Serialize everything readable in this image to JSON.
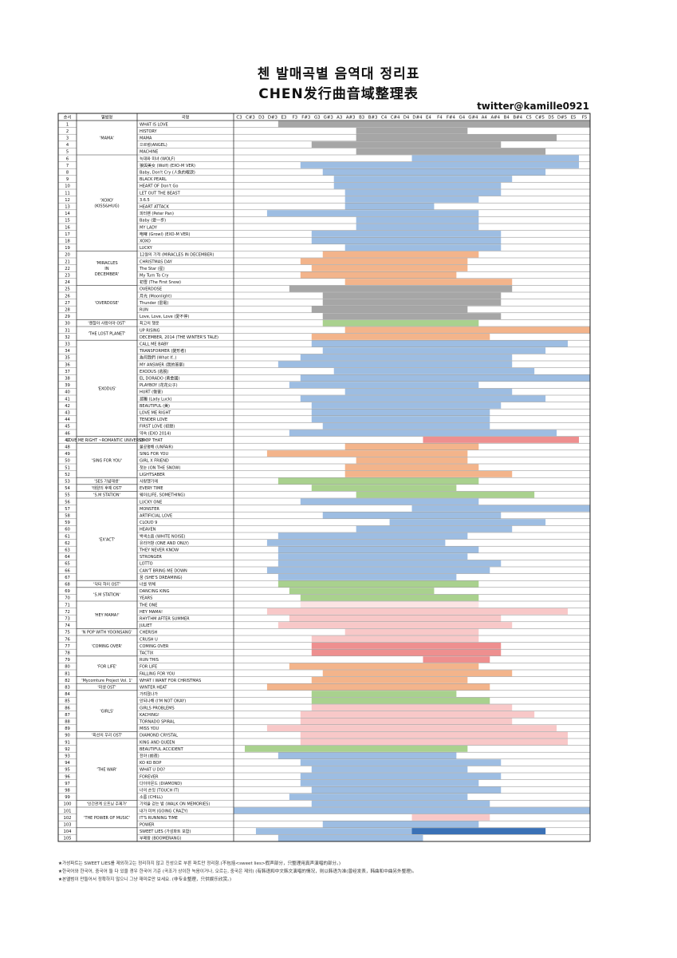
{
  "title_ko": "첸 발매곡별 음역대 정리표",
  "title_zh": "CHEN发行曲音域整理表",
  "credit": "twitter@kamille0921",
  "footnotes": [
    "★가성파트는 SWEET LIES를 제외하고는 정리하지 않고 진성으로 부른 파트만 정리함.(不包括<sweet lies>假声部分，只整理用真声演唱的部分。)",
    "★한국어와 한국어, 중국어 둘 다 있을 경우 한국어 기준 (곡조가 상이한 녹음이거나, 오르는, 중국은 제외) (有韩语和中文韩文演唱的情况，则以韩语为准(曾经发表，韩曲和中曲另外整理)。",
    "★본앨범이 만들어서 정확하지 않으니 그냥 재미로만 보세요. (非专业整理，只供娱乐欣赏。)"
  ],
  "chart_data": {
    "type": "range-bar",
    "header": {
      "num": "순서",
      "album": "앨범명",
      "song": "곡명"
    },
    "notes": [
      "C3",
      "C#3",
      "D3",
      "D#3",
      "E3",
      "F3",
      "F#3",
      "G3",
      "G#3",
      "A3",
      "A#3",
      "B3",
      "B#3",
      "C4",
      "C#4",
      "D4",
      "D#4",
      "E4",
      "F4",
      "F#4",
      "G4",
      "G#4",
      "A4",
      "A#4",
      "B4",
      "B#4",
      "C5",
      "C#5",
      "D5",
      "D#5",
      "E5",
      "F5"
    ],
    "colors": {
      "gray": "#a6a6a6",
      "blue": "#9dbde2",
      "orange": "#f3b48b",
      "green": "#a9d18e",
      "pink": "#f8c8c8",
      "red": "#ee8f8f",
      "dblue": "#3a71b6",
      "pblue": "#cfe0f1",
      "pgreen": "#d6ebc9",
      "porange": "#fbdcc7",
      "ppink": "#fce4e4"
    },
    "albums": [
      {
        "name": "'MAMA'",
        "start": 0,
        "end": 4
      },
      {
        "name": "'XOXO'\n(KISS&HUG)",
        "start": 5,
        "end": 18
      },
      {
        "name": "'MIRACLES\nIN\nDECEMBER'",
        "start": 19,
        "end": 23
      },
      {
        "name": "'OVERDOSE'",
        "start": 24,
        "end": 28
      },
      {
        "name": "'괜찮아 사랑이야 OST'",
        "start": 29,
        "end": 29
      },
      {
        "name": "'THE LOST PLANET'",
        "start": 30,
        "end": 31
      },
      {
        "name": "'EXODUS'",
        "start": 32,
        "end": 45
      },
      {
        "name": "'LOVE ME RIGHT ~ROMANTIC UNIVERSE~'",
        "start": 46,
        "end": 46
      },
      {
        "name": "'SING FOR YOU'",
        "start": 47,
        "end": 51
      },
      {
        "name": "'SES 기념재생'",
        "start": 52,
        "end": 52
      },
      {
        "name": "'태양의 후예 OST'",
        "start": 53,
        "end": 53
      },
      {
        "name": "'S.M STATION'",
        "start": 54,
        "end": 54
      },
      {
        "name": "'EX'ACT'",
        "start": 55,
        "end": 66
      },
      {
        "name": "'닥터 하이 OST'",
        "start": 67,
        "end": 67
      },
      {
        "name": "'S.M STATION'",
        "start": 68,
        "end": 69
      },
      {
        "name": "'HEY MAMA!'",
        "start": 70,
        "end": 73
      },
      {
        "name": "'N POP WITH YOOINSANG'",
        "start": 74,
        "end": 74
      },
      {
        "name": "'COMING OVER'",
        "start": 75,
        "end": 77
      },
      {
        "name": "'FOR LIFE'",
        "start": 78,
        "end": 80
      },
      {
        "name": "'Mycomture Project Vol. 1'",
        "start": 81,
        "end": 81
      },
      {
        "name": "'미생 OST'",
        "start": 82,
        "end": 82
      },
      {
        "name": "'GIRLS'",
        "start": 83,
        "end": 88
      },
      {
        "name": "'최선의 우리 OST'",
        "start": 89,
        "end": 89
      },
      {
        "name": "'THE WAR'",
        "start": 90,
        "end": 98
      },
      {
        "name": "'인간관계 오프닝 주제가'",
        "start": 99,
        "end": 99
      },
      {
        "name": "'THE POWER OF MUSIC'",
        "start": 100,
        "end": 102
      }
    ],
    "rows": [
      {
        "n": "1",
        "song": "WHAT IS LOVE",
        "lo": "E3",
        "hi": "F5",
        "c": "gray"
      },
      {
        "n": "2",
        "song": "HISTORY",
        "lo": "B3",
        "hi": "G4",
        "c": "gray"
      },
      {
        "n": "3",
        "song": "MAMA",
        "lo": "B3",
        "hi": "D5",
        "c": "gray"
      },
      {
        "n": "4",
        "song": "으르렁(ANGEL)",
        "lo": "G3",
        "hi": "A#4",
        "c": "gray"
      },
      {
        "n": "5",
        "song": "MACHINE",
        "lo": "B3",
        "hi": "C#5",
        "c": "gray"
      },
      {
        "n": "6",
        "song": "늑대와 미녀 (WOLF)",
        "lo": "D#4",
        "hi": "E5",
        "c": "blue"
      },
      {
        "n": "7",
        "song": "狼與美女 (Wolf) (EXO-M VER)",
        "lo": "F#3",
        "hi": "E5",
        "c": "blue"
      },
      {
        "n": "8",
        "song": "Baby, Don't Cry (人魚的眼淚)",
        "lo": "G#3",
        "hi": "C#5",
        "c": "blue"
      },
      {
        "n": "9",
        "song": "BLACK PEARL",
        "lo": "A3",
        "hi": "B4",
        "c": "blue"
      },
      {
        "n": "10",
        "song": "HEART OF Don't Go",
        "lo": "A3",
        "hi": "A#4",
        "c": "blue"
      },
      {
        "n": "11",
        "song": "LET OUT THE BEAST",
        "lo": "A#3",
        "hi": "A#4",
        "c": "blue"
      },
      {
        "n": "12",
        "song": "3.6.5",
        "lo": "A#3",
        "hi": "G#4",
        "c": "blue"
      },
      {
        "n": "13",
        "song": "HEART ATTACK",
        "lo": "A#3",
        "hi": "E4",
        "c": "blue"
      },
      {
        "n": "14",
        "song": "피터팬 (Peter Pan)",
        "lo": "D#3",
        "hi": "G#4",
        "c": "blue"
      },
      {
        "n": "15",
        "song": "Baby (愛一歩)",
        "lo": "B3",
        "hi": "G#4",
        "c": "blue"
      },
      {
        "n": "16",
        "song": "MY LADY",
        "lo": "B3",
        "hi": "G#4",
        "c": "blue"
      },
      {
        "n": "17",
        "song": "咆哮 (Growl) (EXO-M VER)",
        "lo": "G3",
        "hi": "A#4",
        "c": "blue"
      },
      {
        "n": "18",
        "song": "XOXO",
        "lo": "G3",
        "hi": "A#4",
        "c": "blue"
      },
      {
        "n": "19",
        "song": "LUCKY",
        "lo": "A#3",
        "hi": "A#4",
        "c": "blue"
      },
      {
        "n": "20",
        "song": "12월의 기적 (MIRACLES IN DECEMBER)",
        "lo": "G#3",
        "hi": "G#4",
        "c": "orange"
      },
      {
        "n": "21",
        "song": "CHRISTMAS DAY",
        "lo": "F#3",
        "hi": "G4",
        "c": "orange"
      },
      {
        "n": "22",
        "song": "The Star (星)",
        "lo": "G3",
        "hi": "G4",
        "c": "orange"
      },
      {
        "n": "23",
        "song": "My Turn To Cry",
        "lo": "F#3",
        "hi": "F#4",
        "c": "orange"
      },
      {
        "n": "24",
        "song": "初雪 (The First Snow)",
        "lo": "A#3",
        "hi": "B4",
        "c": "orange"
      },
      {
        "n": "25",
        "song": "OVERDOSE",
        "lo": "F3",
        "hi": "B4",
        "c": "gray"
      },
      {
        "n": "26",
        "song": "月光 (Moonlight)",
        "lo": "G#3",
        "hi": "A#4",
        "c": "gray"
      },
      {
        "n": "27",
        "song": "Thunder (雷電)",
        "lo": "G#3",
        "hi": "A#4",
        "c": "gray"
      },
      {
        "n": "28",
        "song": "RUN",
        "lo": "G3",
        "hi": "G4",
        "c": "gray"
      },
      {
        "n": "29",
        "song": "Love, Love, Love (愛不停)",
        "lo": "G#3",
        "hi": "A#4",
        "c": "gray"
      },
      {
        "n": "30",
        "song": "최고의 행운",
        "lo": "G#3",
        "hi": "G#4",
        "c": "green"
      },
      {
        "n": "31",
        "song": "UP RISING",
        "lo": "A#3",
        "hi": "F5",
        "c": "orange"
      },
      {
        "n": "32",
        "song": "DECEMBER, 2014 (THE WINTER'S TALE)",
        "lo": "G3",
        "hi": "A4",
        "c": "orange"
      },
      {
        "n": "33",
        "song": "CALL ME BABY",
        "lo": "G3",
        "hi": "D#5",
        "c": "blue"
      },
      {
        "n": "34",
        "song": "TRANSFORMER (變形者)",
        "lo": "G#3",
        "hi": "C#5",
        "c": "blue"
      },
      {
        "n": "35",
        "song": "為何我們 (What If..)",
        "lo": "F#3",
        "hi": "B4",
        "c": "blue"
      },
      {
        "n": "36",
        "song": "MY ANSWER (我的答案)",
        "lo": "E3",
        "hi": "B4",
        "c": "blue"
      },
      {
        "n": "37",
        "song": "EXODUS (逃脱)",
        "lo": "A3",
        "hi": "C5",
        "c": "blue"
      },
      {
        "n": "38",
        "song": "EL DORADO (黃金國)",
        "lo": "F#3",
        "hi": "F5",
        "c": "blue"
      },
      {
        "n": "39",
        "song": "PLAYBOY (花花公子)",
        "lo": "F3",
        "hi": "G#4",
        "c": "blue"
      },
      {
        "n": "40",
        "song": "HURT (傷害)",
        "lo": "A#3",
        "hi": "B4",
        "c": "blue"
      },
      {
        "n": "41",
        "song": "孤獨 (Lady Luck)",
        "lo": "F#3",
        "hi": "C#5",
        "c": "blue"
      },
      {
        "n": "42",
        "song": "BEAUTIFUL (美)",
        "lo": "G3",
        "hi": "A#4",
        "c": "blue"
      },
      {
        "n": "43",
        "song": "LOVE ME RIGHT",
        "lo": "G3",
        "hi": "A4",
        "c": "blue"
      },
      {
        "n": "44",
        "song": "TENDER LOVE",
        "lo": "G3",
        "hi": "A4",
        "c": "blue"
      },
      {
        "n": "45",
        "song": "FIRST LOVE (初戀)",
        "lo": "G#3",
        "hi": "A4",
        "c": "blue"
      },
      {
        "n": "46",
        "song": "약속 (EXO 2014)",
        "lo": "F3",
        "hi": "D5",
        "c": "blue"
      },
      {
        "n": "47",
        "song": "DROP THAT",
        "lo": "E4",
        "hi": "E5",
        "c": "red"
      },
      {
        "n": "48",
        "song": "불공평해 (UNFAIR)",
        "lo": "A#3",
        "hi": "G#4",
        "c": "orange"
      },
      {
        "n": "49",
        "song": "SING FOR YOU",
        "lo": "D#3",
        "hi": "G4",
        "c": "orange"
      },
      {
        "n": "50",
        "song": "GIRL X FRIEND",
        "lo": "B3",
        "hi": "G4",
        "c": "orange"
      },
      {
        "n": "51",
        "song": "첫눈 (ON THE SNOW)",
        "lo": "A#3",
        "hi": "G#4",
        "c": "orange"
      },
      {
        "n": "52",
        "song": "LIGHTSABER",
        "lo": "A#3",
        "hi": "B4",
        "c": "orange"
      },
      {
        "n": "53",
        "song": "사랑했기에",
        "lo": "E3",
        "hi": "G#4",
        "c": "green"
      },
      {
        "n": "54",
        "song": "EVERY TIME",
        "lo": "G3",
        "hi": "F#4",
        "c": "green"
      },
      {
        "n": "55",
        "song": "웨이(LIFE, SOMETHING)",
        "lo": "B3",
        "hi": "C5",
        "c": "green"
      },
      {
        "n": "56",
        "song": "LUCKY ONE",
        "lo": "F#3",
        "hi": "G#4",
        "c": "blue"
      },
      {
        "n": "57",
        "song": "MONSTER",
        "lo": "D#4",
        "hi": "F5",
        "c": "blue"
      },
      {
        "n": "58",
        "song": "ARTIFICIAL LOVE",
        "lo": "G#3",
        "hi": "A#4",
        "c": "blue"
      },
      {
        "n": "59",
        "song": "CLOUD 9",
        "lo": "C#4",
        "hi": "C#5",
        "c": "blue"
      },
      {
        "n": "60",
        "song": "HEAVEN",
        "lo": "B3",
        "hi": "B4",
        "c": "blue"
      },
      {
        "n": "61",
        "song": "백색소음 (WHITE NOISE)",
        "lo": "E3",
        "hi": "G4",
        "c": "blue"
      },
      {
        "n": "62",
        "song": "유리어항 (ONE AND ONLY)",
        "lo": "D#3",
        "hi": "F4",
        "c": "blue"
      },
      {
        "n": "63",
        "song": "THEY NEVER KNOW",
        "lo": "E3",
        "hi": "G#4",
        "c": "blue"
      },
      {
        "n": "64",
        "song": "STRONGER",
        "lo": "E3",
        "hi": "G4",
        "c": "blue"
      },
      {
        "n": "65",
        "song": "LOTTO",
        "lo": "E3",
        "hi": "A#4",
        "c": "blue"
      },
      {
        "n": "66",
        "song": "CAN'T BRING ME DOWN",
        "lo": "D#3",
        "hi": "A4",
        "c": "blue"
      },
      {
        "n": "67",
        "song": "꿈 (SHE'S DREAMING)",
        "lo": "E3",
        "hi": "F#4",
        "c": "blue"
      },
      {
        "n": "68",
        "song": "너를 위해",
        "lo": "E3",
        "hi": "G#4",
        "c": "green"
      },
      {
        "n": "69",
        "song": "DANCING KING",
        "lo": "F3",
        "hi": "E4",
        "c": "green"
      },
      {
        "n": "70",
        "song": "YEARS",
        "lo": "F#3",
        "hi": "G#4",
        "c": "green"
      },
      {
        "n": "71",
        "song": "THE ONE",
        "lo": "F#3",
        "hi": "G#4",
        "c": "ppink"
      },
      {
        "n": "72",
        "song": "HEY MAMA!",
        "lo": "D#3",
        "hi": "D#5",
        "c": "pink"
      },
      {
        "n": "73",
        "song": "RHYTHM AFTER SUMMER",
        "lo": "F3",
        "hi": "A#4",
        "c": "pink"
      },
      {
        "n": "74",
        "song": "JULIET",
        "lo": "E3",
        "hi": "B4",
        "c": "pink"
      },
      {
        "n": "75",
        "song": "CHERISH",
        "lo": "A#3",
        "hi": "G#4",
        "c": "pink"
      },
      {
        "n": "76",
        "song": "CRUSH U",
        "lo": "G3",
        "hi": "G#4",
        "c": "pink"
      },
      {
        "n": "77",
        "song": "COMING OVER",
        "lo": "G3",
        "hi": "A#4",
        "c": "red"
      },
      {
        "n": "78",
        "song": "TACTIX",
        "lo": "G3",
        "hi": "A#4",
        "c": "red"
      },
      {
        "n": "79",
        "song": "RUN THIS",
        "lo": "E4",
        "hi": "A4",
        "c": "red"
      },
      {
        "n": "80",
        "song": "FOR LIFE",
        "lo": "F3",
        "hi": "G#4",
        "c": "orange"
      },
      {
        "n": "81",
        "song": "FALLING FOR YOU",
        "lo": "G#3",
        "hi": "B4",
        "c": "orange"
      },
      {
        "n": "82",
        "song": "WHAT I WANT FOR CHRISTMAS",
        "lo": "G3",
        "hi": "G4",
        "c": "orange"
      },
      {
        "n": "83",
        "song": "WINTER HEAT",
        "lo": "D#3",
        "hi": "A4",
        "c": "orange"
      },
      {
        "n": "84",
        "song": "가려졌나가",
        "lo": "G3",
        "hi": "F#4",
        "c": "green"
      },
      {
        "n": "85",
        "song": "안되나해 (I'M NOT OKAY)",
        "lo": "G3",
        "hi": "A4",
        "c": "green"
      },
      {
        "n": "86",
        "song": "GIRLS PROBLEMS",
        "lo": "G3",
        "hi": "B4",
        "c": "pink"
      },
      {
        "n": "87",
        "song": "KACHING!",
        "lo": "F#3",
        "hi": "C5",
        "c": "pink"
      },
      {
        "n": "88",
        "song": "TORNADO SPIRAL",
        "lo": "F#3",
        "hi": "B4",
        "c": "pink"
      },
      {
        "n": "89",
        "song": "MISS YOU",
        "lo": "D#3",
        "hi": "D5",
        "c": "pink"
      },
      {
        "n": "90",
        "song": "DIAMOND CRYSTAL",
        "lo": "F#3",
        "hi": "D#5",
        "c": "pink"
      },
      {
        "n": "91",
        "song": "KING AND QUEEN",
        "lo": "F#3",
        "hi": "D#5",
        "c": "pink"
      },
      {
        "n": "92",
        "song": "BEAUTIFUL ACCIDENT",
        "lo": "C#3",
        "hi": "G4",
        "c": "green"
      },
      {
        "n": "93",
        "song": "전야 (前夜)",
        "lo": "E3",
        "hi": "F#4",
        "c": "blue"
      },
      {
        "n": "94",
        "song": "KO KO BOP",
        "lo": "F#3",
        "hi": "A#4",
        "c": "blue"
      },
      {
        "n": "95",
        "song": "WHAT U DO?",
        "lo": "G3",
        "hi": "G4",
        "c": "blue"
      },
      {
        "n": "96",
        "song": "FOREVER",
        "lo": "F#3",
        "hi": "A#4",
        "c": "blue"
      },
      {
        "n": "97",
        "song": "다이아몬드 (DIAMOND)",
        "lo": "F#3",
        "hi": "G#4",
        "c": "blue"
      },
      {
        "n": "98",
        "song": "너의 손짓 (TOUCH IT)",
        "lo": "G3",
        "hi": "A#4",
        "c": "blue"
      },
      {
        "n": "99",
        "song": "소름 (CHILL)",
        "lo": "F3",
        "hi": "G4",
        "c": "blue"
      },
      {
        "n": "100",
        "song": "기억을 걷는 밤 (WALK ON MEMORIES)",
        "lo": "G3",
        "hi": "A4",
        "c": "blue"
      },
      {
        "n": "101",
        "song": "내가 미쳐 (GOING CRAZY)",
        "lo": "C3",
        "hi": "F5",
        "c": "blue"
      },
      {
        "n": "102",
        "song": "IT'S RUNNING TIME",
        "lo": "D#4",
        "hi": "A4",
        "c": "pink"
      },
      {
        "n": "103",
        "song": "POWER",
        "lo": "G#3",
        "hi": "G#4",
        "c": "blue"
      },
      {
        "n": "104",
        "song": "SWEET LIES (가성파트 포함)",
        "lo": "D3",
        "hi": "C#5",
        "c": "blue",
        "dark": [
          "D#4",
          "C#5"
        ]
      },
      {
        "n": "105",
        "song": "부메랑 (BOOMERANG)",
        "lo": "E3",
        "hi": "D#4",
        "c": "blue"
      }
    ]
  }
}
